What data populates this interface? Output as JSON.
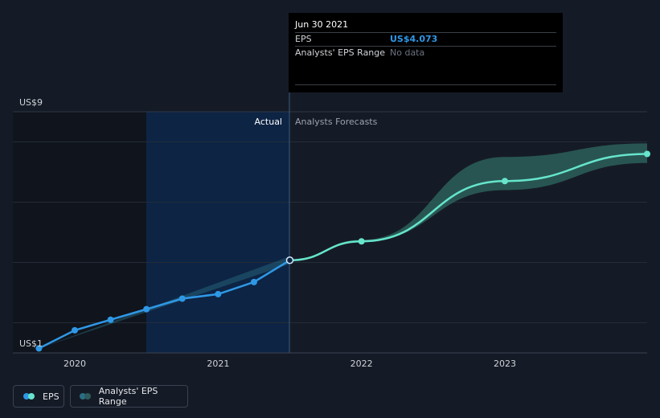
{
  "chart_data": {
    "type": "line",
    "y_top_label": "US$9",
    "y_bottom_label": "US$1",
    "ylim": [
      1,
      9
    ],
    "x_ticks": [
      "2020",
      "2021",
      "2022",
      "2023"
    ],
    "x_tick_values": [
      2020.0,
      2021.0,
      2022.0,
      2023.0
    ],
    "divider_x": 2021.5,
    "region_labels": {
      "actual": "Actual",
      "forecast": "Analysts Forecasts"
    },
    "grid": true,
    "series": [
      {
        "name": "EPS",
        "color": "#2f98e6",
        "points": [
          {
            "x": 2019.75,
            "y": 1.15
          },
          {
            "x": 2020.0,
            "y": 1.75
          },
          {
            "x": 2020.25,
            "y": 2.1
          },
          {
            "x": 2020.5,
            "y": 2.45
          },
          {
            "x": 2020.75,
            "y": 2.8
          },
          {
            "x": 2021.0,
            "y": 2.95
          },
          {
            "x": 2021.25,
            "y": 3.35
          },
          {
            "x": 2021.5,
            "y": 4.073
          }
        ]
      },
      {
        "name": "EPS",
        "color": "#66e5cc",
        "forecast": true,
        "points": [
          {
            "x": 2021.5,
            "y": 4.073
          },
          {
            "x": 2022.0,
            "y": 4.7
          },
          {
            "x": 2023.0,
            "y": 6.7
          },
          {
            "x": 2024.0,
            "y": 7.6
          }
        ]
      }
    ],
    "actual_range": {
      "upper": [
        [
          2019.75,
          1.15
        ],
        [
          2021.5,
          4.2
        ]
      ],
      "lower": [
        [
          2019.75,
          1.15
        ],
        [
          2021.5,
          3.95
        ]
      ]
    },
    "forecast_range": {
      "upper": [
        [
          2021.5,
          4.073
        ],
        [
          2022.0,
          4.75
        ],
        [
          2023.0,
          7.5
        ],
        [
          2024.0,
          7.95
        ]
      ],
      "lower": [
        [
          2021.5,
          4.073
        ],
        [
          2022.0,
          4.7
        ],
        [
          2023.0,
          6.4
        ],
        [
          2024.0,
          7.3
        ]
      ]
    }
  },
  "tooltip": {
    "date": "Jun 30 2021",
    "rows": [
      {
        "label": "EPS",
        "value": "US$4.073",
        "color": "#2f98e6"
      },
      {
        "label": "Analysts' EPS Range",
        "value": "No data",
        "color": "#6b7280"
      }
    ]
  },
  "legend": [
    {
      "label": "EPS",
      "colors": [
        "#2f98e6",
        "#66e5cc"
      ]
    },
    {
      "label": "Analysts' EPS Range",
      "colors": [
        "#2a6e86",
        "#2e5a5c"
      ]
    }
  ]
}
